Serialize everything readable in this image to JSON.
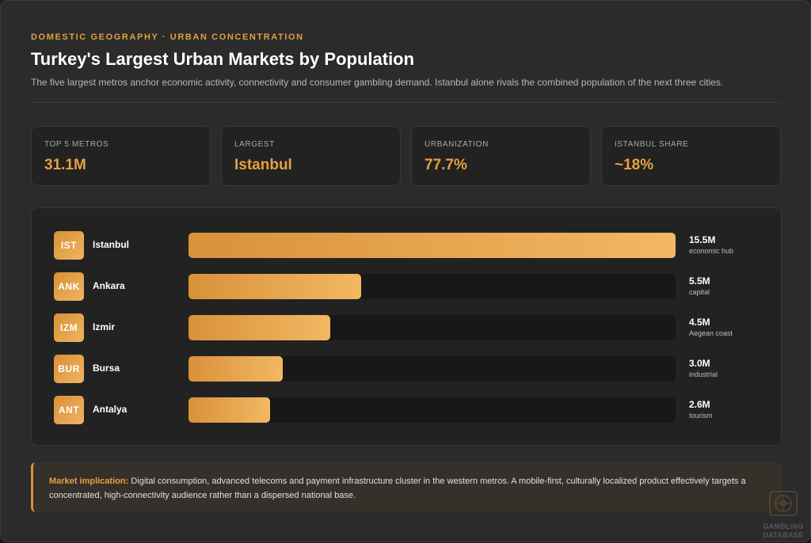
{
  "header": {
    "eyebrow": "DOMESTIC GEOGRAPHY · URBAN CONCENTRATION",
    "title": "Turkey's Largest Urban Markets by Population",
    "subtitle": "The five largest metros anchor economic activity, connectivity and consumer gambling demand. Istanbul alone rivals the combined population of the next three cities."
  },
  "stats": [
    {
      "label": "TOP 5 METROS",
      "value": "31.1M"
    },
    {
      "label": "LARGEST",
      "value": "Istanbul"
    },
    {
      "label": "URBANIZATION",
      "value": "77.7%"
    },
    {
      "label": "ISTANBUL SHARE",
      "value": "~18%"
    }
  ],
  "chart_data": {
    "type": "bar",
    "orientation": "horizontal",
    "unit": "M",
    "xlim": [
      0,
      15.5
    ],
    "categories": [
      "Istanbul",
      "Ankara",
      "Izmir",
      "Bursa",
      "Antalya"
    ],
    "codes": [
      "IST",
      "ANK",
      "IZM",
      "BUR",
      "ANT"
    ],
    "values": [
      15.5,
      5.5,
      4.5,
      3.0,
      2.6
    ],
    "value_labels": [
      "15.5M",
      "5.5M",
      "4.5M",
      "3.0M",
      "2.6M"
    ],
    "notes": [
      "economic hub",
      "capital",
      "Aegean coast",
      "industrial",
      "tourism"
    ],
    "colors": {
      "bar_start": "#d9913a",
      "bar_end": "#f2b862",
      "track": "#181818"
    }
  },
  "callout": {
    "lead": "Market implication:",
    "text": "Digital consumption, advanced telecoms and payment infrastructure cluster in the western metros. A mobile-first, culturally localized product effectively targets a concentrated, high-connectivity audience rather than a dispersed national base."
  },
  "watermark": {
    "line1": "GAMBLING",
    "line2": "DATABASE",
    "icon": "roulette-wheel-icon"
  },
  "colors": {
    "accent": "#e8a040",
    "background": "#2b2b2b",
    "panel": "#222222"
  }
}
